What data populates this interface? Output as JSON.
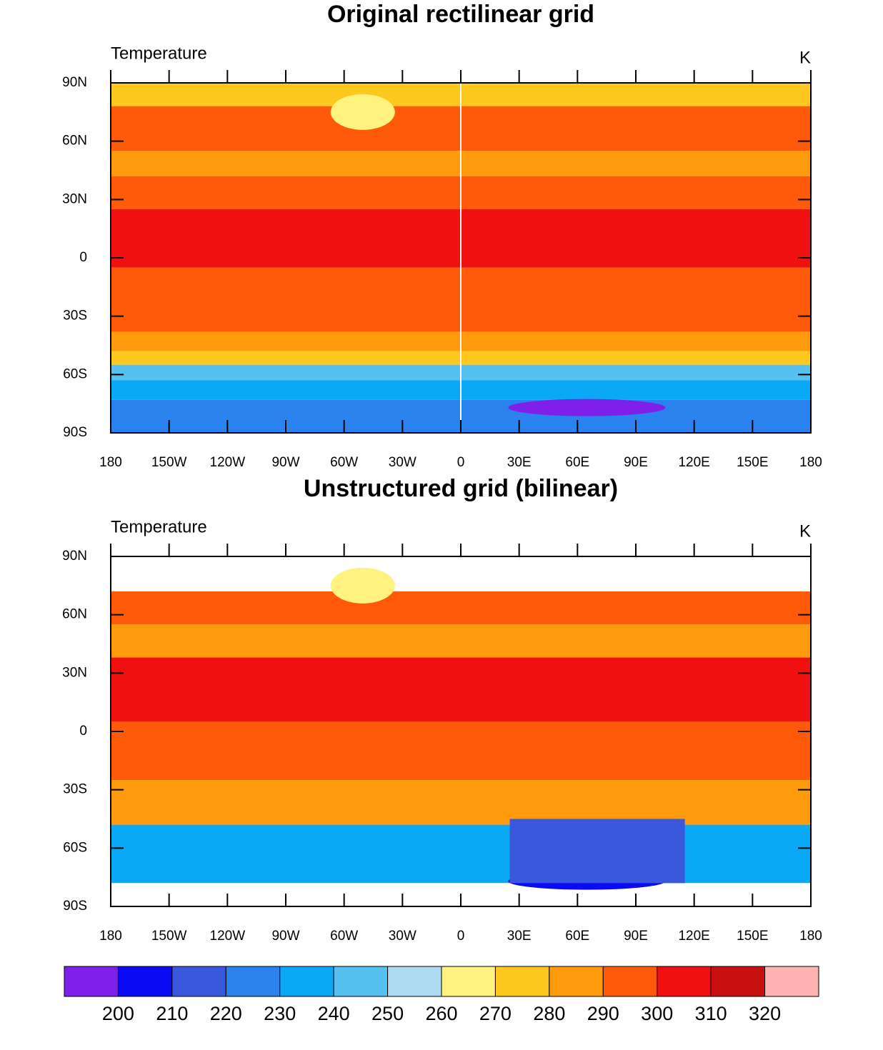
{
  "panels": [
    {
      "title": "Original rectilinear grid",
      "left_label": "Temperature",
      "right_label": "K",
      "lat_labels": [
        "90N",
        "60N",
        "30N",
        "0",
        "30S",
        "60S",
        "90S"
      ],
      "lon_labels": [
        "180",
        "150W",
        "120W",
        "90W",
        "60W",
        "30W",
        "0",
        "30E",
        "60E",
        "90E",
        "120E",
        "150E",
        "180"
      ]
    },
    {
      "title": "Unstructured grid (bilinear)",
      "left_label": "Temperature",
      "right_label": "K",
      "lat_labels": [
        "90N",
        "60N",
        "30N",
        "0",
        "30S",
        "60S",
        "90S"
      ],
      "lon_labels": [
        "180",
        "150W",
        "120W",
        "90W",
        "60W",
        "30W",
        "0",
        "30E",
        "60E",
        "90E",
        "120E",
        "150E",
        "180"
      ]
    }
  ],
  "colorbar": {
    "colors": [
      "#7f20ea",
      "#0a0af5",
      "#3a58dc",
      "#2a82ee",
      "#0aa8f5",
      "#56c0f0",
      "#acdaf2",
      "#fff27e",
      "#ffc81e",
      "#ff9a0c",
      "#ff5a0a",
      "#f01010",
      "#c81010",
      "#ffb2b2"
    ],
    "labels": [
      200,
      210,
      220,
      230,
      240,
      250,
      260,
      270,
      280,
      290,
      300,
      310,
      320
    ]
  }
}
